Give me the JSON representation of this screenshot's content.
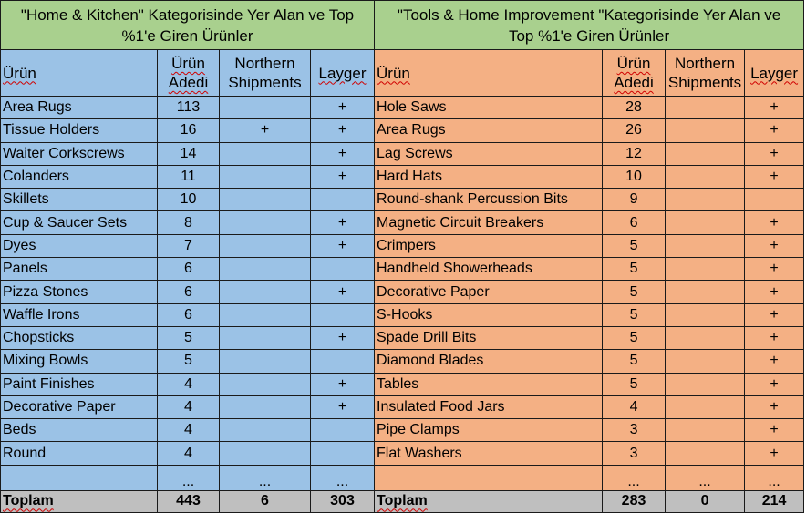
{
  "left_table": {
    "title_line1": "\"Home & Kitchen\" Kategorisinde Yer Alan ve Top",
    "title_line2": "%1'e Giren Ürünler",
    "headers": {
      "product": "Ürün",
      "count_line1": "Ürün",
      "count_line2": "Adedi",
      "northern_line1": "Northern",
      "northern_line2": "Shipments",
      "layger": "Layger"
    },
    "rows": [
      {
        "product": "Area Rugs",
        "count": "113",
        "northern": "",
        "layger": "+"
      },
      {
        "product": "Tissue Holders",
        "count": "16",
        "northern": "+",
        "layger": "+"
      },
      {
        "product": "Waiter Corkscrews",
        "count": "14",
        "northern": "",
        "layger": "+"
      },
      {
        "product": "Colanders",
        "count": "11",
        "northern": "",
        "layger": "+"
      },
      {
        "product": "Skillets",
        "count": "10",
        "northern": "",
        "layger": ""
      },
      {
        "product": "Cup & Saucer Sets",
        "count": "8",
        "northern": "",
        "layger": "+"
      },
      {
        "product": "Dyes",
        "count": "7",
        "northern": "",
        "layger": "+"
      },
      {
        "product": "Panels",
        "count": "6",
        "northern": "",
        "layger": ""
      },
      {
        "product": "Pizza Stones",
        "count": "6",
        "northern": "",
        "layger": "+"
      },
      {
        "product": "Waffle Irons",
        "count": "6",
        "northern": "",
        "layger": ""
      },
      {
        "product": "Chopsticks",
        "count": "5",
        "northern": "",
        "layger": "+"
      },
      {
        "product": "Mixing Bowls",
        "count": "5",
        "northern": "",
        "layger": ""
      },
      {
        "product": "Paint Finishes",
        "count": "4",
        "northern": "",
        "layger": "+"
      },
      {
        "product": "Decorative Paper",
        "count": "4",
        "northern": "",
        "layger": "+"
      },
      {
        "product": "Beds",
        "count": "4",
        "northern": "",
        "layger": ""
      },
      {
        "product": "Round",
        "count": "4",
        "northern": "",
        "layger": ""
      },
      {
        "product": "",
        "count": "...",
        "northern": "...",
        "layger": "..."
      }
    ],
    "total": {
      "label": "Toplam",
      "count": "443",
      "northern": "6",
      "layger": "303"
    }
  },
  "right_table": {
    "title_line1": "\"Tools & Home Improvement \"Kategorisinde Yer Alan ve",
    "title_line2": "Top %1'e Giren Ürünler",
    "headers": {
      "product": "Ürün",
      "count_line1": "Ürün",
      "count_line2": "Adedi",
      "northern_line1": "Northern",
      "northern_line2": "Shipments",
      "layger": "Layger"
    },
    "rows": [
      {
        "product": "Hole Saws",
        "count": "28",
        "northern": "",
        "layger": "+"
      },
      {
        "product": "Area Rugs",
        "count": "26",
        "northern": "",
        "layger": "+"
      },
      {
        "product": "Lag Screws",
        "count": "12",
        "northern": "",
        "layger": "+"
      },
      {
        "product": "Hard Hats",
        "count": "10",
        "northern": "",
        "layger": "+"
      },
      {
        "product": "Round-shank Percussion Bits",
        "count": "9",
        "northern": "",
        "layger": ""
      },
      {
        "product": "Magnetic Circuit Breakers",
        "count": "6",
        "northern": "",
        "layger": "+"
      },
      {
        "product": "Crimpers",
        "count": "5",
        "northern": "",
        "layger": "+"
      },
      {
        "product": "Handheld Showerheads",
        "count": "5",
        "northern": "",
        "layger": "+"
      },
      {
        "product": "Decorative Paper",
        "count": "5",
        "northern": "",
        "layger": "+"
      },
      {
        "product": "S-Hooks",
        "count": "5",
        "northern": "",
        "layger": "+"
      },
      {
        "product": "Spade Drill Bits",
        "count": "5",
        "northern": "",
        "layger": "+"
      },
      {
        "product": "Diamond Blades",
        "count": "5",
        "northern": "",
        "layger": "+"
      },
      {
        "product": "Tables",
        "count": "5",
        "northern": "",
        "layger": "+"
      },
      {
        "product": "Insulated Food Jars",
        "count": "4",
        "northern": "",
        "layger": "+"
      },
      {
        "product": "Pipe Clamps",
        "count": "3",
        "northern": "",
        "layger": "+"
      },
      {
        "product": "Flat Washers",
        "count": "3",
        "northern": "",
        "layger": "+"
      },
      {
        "product": "",
        "count": "...",
        "northern": "...",
        "layger": "..."
      }
    ],
    "total": {
      "label": "Toplam",
      "count": "283",
      "northern": "0",
      "layger": "214"
    }
  },
  "colors": {
    "title_bg": "#a9d08e",
    "left_bg": "#9bc2e6",
    "right_bg": "#f4b084",
    "total_bg": "#bfbfbf"
  }
}
